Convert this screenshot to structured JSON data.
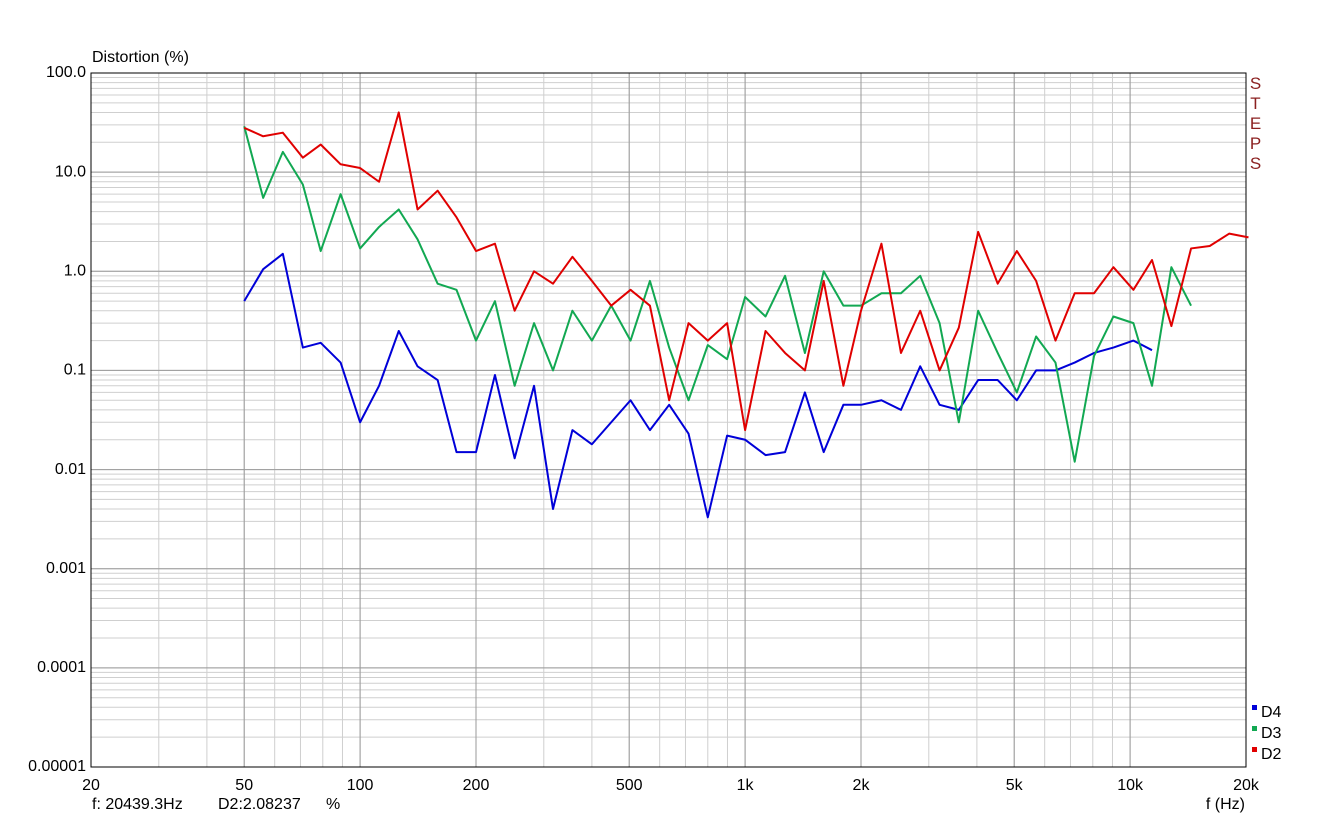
{
  "chart_data": {
    "type": "line",
    "ylabel": "Distortion (%)",
    "xlabel": "f (Hz)",
    "side_label": "STEPS",
    "cursor_readout": [
      "f: 20439.3Hz",
      "D2:2.08237",
      "%"
    ],
    "xscale": "log",
    "yscale": "log",
    "grid": true,
    "legend": "lower right",
    "xlim": [
      20,
      20000
    ],
    "ylim": [
      1e-05,
      100
    ],
    "xticks": [
      20,
      50,
      100,
      200,
      500,
      {
        "value": 1000,
        "label": "1k"
      },
      {
        "value": 2000,
        "label": "2k"
      },
      {
        "value": 5000,
        "label": "5k"
      },
      {
        "value": 10000,
        "label": "10k"
      },
      {
        "value": 20000,
        "label": "20k"
      }
    ],
    "yticks": [
      {
        "value": 100,
        "label": "100.0"
      },
      {
        "value": 10,
        "label": "10.0"
      },
      {
        "value": 1,
        "label": "1.0"
      },
      0.1,
      0.01,
      0.001,
      0.0001,
      {
        "value": 1e-05,
        "label": "0.00001"
      }
    ],
    "x": [
      50,
      56,
      63,
      71,
      79,
      89,
      100,
      112,
      126,
      141,
      159,
      178,
      200,
      224,
      252,
      283,
      317,
      356,
      400,
      449,
      504,
      566,
      635,
      713,
      800,
      898,
      1000,
      1130,
      1270,
      1430,
      1600,
      1800,
      2000,
      2260,
      2540,
      2850,
      3200,
      3590,
      4030,
      4530,
      5080,
      5700,
      6400,
      7180,
      8060,
      9050,
      10200,
      11400,
      12800,
      14400,
      16100,
      18100,
      20300
    ],
    "series": [
      {
        "name": "D4",
        "color": "#0000d8",
        "values": [
          0.5,
          1.05,
          1.5,
          0.17,
          0.19,
          0.12,
          0.03,
          0.07,
          0.25,
          0.11,
          0.08,
          0.015,
          0.015,
          0.09,
          0.013,
          0.07,
          0.004,
          0.025,
          0.018,
          0.03,
          0.05,
          0.025,
          0.045,
          0.023,
          0.0033,
          0.022,
          0.02,
          0.014,
          0.015,
          0.06,
          0.015,
          0.045,
          0.045,
          0.05,
          0.04,
          0.11,
          0.045,
          0.04,
          0.08,
          0.08,
          0.05,
          0.1,
          0.1,
          0.12,
          0.15,
          0.17,
          0.2,
          0.16,
          null,
          null,
          null,
          null,
          null
        ]
      },
      {
        "name": "D3",
        "color": "#12a852",
        "values": [
          29,
          5.5,
          16,
          7.5,
          1.6,
          6,
          1.7,
          2.8,
          4.2,
          2.1,
          0.75,
          0.65,
          0.2,
          0.5,
          0.07,
          0.3,
          0.1,
          0.4,
          0.2,
          0.45,
          0.2,
          0.8,
          0.17,
          0.05,
          0.18,
          0.13,
          0.55,
          0.35,
          0.9,
          0.15,
          1.0,
          0.45,
          0.45,
          0.6,
          0.6,
          0.9,
          0.3,
          0.03,
          0.4,
          0.15,
          0.06,
          0.22,
          0.12,
          0.012,
          0.14,
          0.35,
          0.3,
          0.07,
          1.1,
          0.45,
          null,
          null,
          null
        ]
      },
      {
        "name": "D2",
        "color": "#e00000",
        "values": [
          28,
          23,
          25,
          14,
          19,
          12,
          11,
          8,
          40,
          4.2,
          6.5,
          3.5,
          1.6,
          1.9,
          0.4,
          1.0,
          0.75,
          1.4,
          0.8,
          0.45,
          0.65,
          0.45,
          0.05,
          0.3,
          0.2,
          0.3,
          0.025,
          0.25,
          0.15,
          0.1,
          0.8,
          0.07,
          0.4,
          1.9,
          0.15,
          0.4,
          0.1,
          0.27,
          2.5,
          0.75,
          1.6,
          0.8,
          0.2,
          0.6,
          0.6,
          1.1,
          0.65,
          1.3,
          0.28,
          1.7,
          1.8,
          2.4,
          2.2
        ]
      }
    ]
  }
}
